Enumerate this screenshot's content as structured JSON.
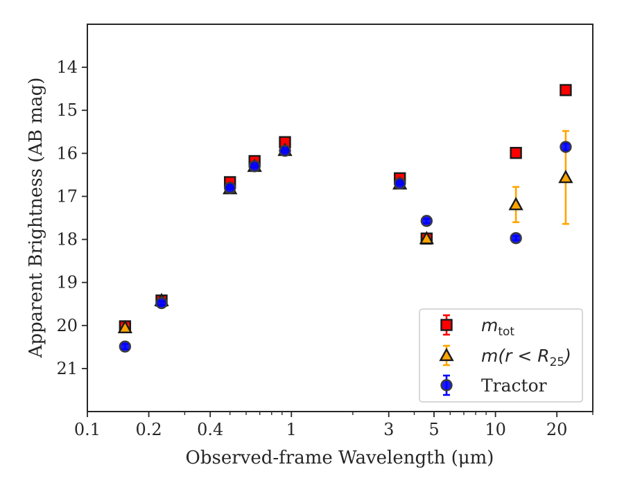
{
  "chart_data": {
    "type": "scatter",
    "xlabel": "Observed-frame Wavelength (μm)",
    "ylabel": "Apparent Brightness (AB mag)",
    "x_scale": "log",
    "y_inverted": true,
    "xlim": [
      0.1,
      30
    ],
    "ylim": [
      22,
      13
    ],
    "x_ticks": [
      {
        "value": 0.1,
        "label": "0.1"
      },
      {
        "value": 0.2,
        "label": "0.2"
      },
      {
        "value": 0.4,
        "label": "0.4"
      },
      {
        "value": 1,
        "label": "1"
      },
      {
        "value": 3,
        "label": "3"
      },
      {
        "value": 5,
        "label": "5"
      },
      {
        "value": 10,
        "label": "10"
      },
      {
        "value": 20,
        "label": "20"
      }
    ],
    "y_ticks": [
      {
        "value": 14,
        "label": "14"
      },
      {
        "value": 15,
        "label": "15"
      },
      {
        "value": 16,
        "label": "16"
      },
      {
        "value": 17,
        "label": "17"
      },
      {
        "value": 18,
        "label": "18"
      },
      {
        "value": 19,
        "label": "19"
      },
      {
        "value": 20,
        "label": "20"
      },
      {
        "value": 21,
        "label": "21"
      }
    ],
    "legend_position": "bottom-right",
    "series": [
      {
        "name": "m_tot",
        "legend_text": {
          "base": "m",
          "sub": "tot"
        },
        "marker": "square",
        "color": "#ff0000",
        "edge_color": "#1a1a1a",
        "errorbar_color": "#ff0000",
        "points": [
          {
            "x": 0.153,
            "y": 20.02,
            "err": 0.05
          },
          {
            "x": 0.231,
            "y": 19.42,
            "err": 0.04
          },
          {
            "x": 0.5,
            "y": 16.67,
            "err": 0.03
          },
          {
            "x": 0.66,
            "y": 16.18,
            "err": 0.03
          },
          {
            "x": 0.93,
            "y": 15.74,
            "err": 0.03
          },
          {
            "x": 3.4,
            "y": 16.58,
            "err": 0.03
          },
          {
            "x": 4.6,
            "y": 17.98,
            "err": 0.03
          },
          {
            "x": 12.6,
            "y": 15.99,
            "err": 0.03
          },
          {
            "x": 22.1,
            "y": 14.53,
            "err": 0.03
          }
        ]
      },
      {
        "name": "m(r<R25)",
        "legend_text": {
          "base": "m(r < R",
          "sub": "25",
          "tail": ")"
        },
        "marker": "triangle",
        "color": "#ffa500",
        "edge_color": "#1a1a1a",
        "errorbar_color": "#ffa500",
        "points": [
          {
            "x": 0.153,
            "y": 20.05,
            "err": 0.05
          },
          {
            "x": 0.231,
            "y": 19.42,
            "err": 0.04
          },
          {
            "x": 0.5,
            "y": 16.82,
            "err": 0.03
          },
          {
            "x": 0.66,
            "y": 16.3,
            "err": 0.03
          },
          {
            "x": 0.93,
            "y": 15.93,
            "err": 0.03
          },
          {
            "x": 3.4,
            "y": 16.71,
            "err": 0.03
          },
          {
            "x": 4.6,
            "y": 17.98,
            "err": 0.03
          },
          {
            "x": 12.6,
            "y": 17.19,
            "err": 0.41
          },
          {
            "x": 22.1,
            "y": 16.56,
            "err": 1.08
          }
        ]
      },
      {
        "name": "Tractor",
        "legend_text": {
          "base": "Tractor"
        },
        "marker": "circle",
        "color": "#0000ff",
        "edge_color": "#3a3a3a",
        "errorbar_color": "#0000ff",
        "points": [
          {
            "x": 0.153,
            "y": 20.49,
            "err": 0.06
          },
          {
            "x": 0.231,
            "y": 19.48,
            "err": 0.04
          },
          {
            "x": 0.5,
            "y": 16.8,
            "err": 0.03
          },
          {
            "x": 0.66,
            "y": 16.3,
            "err": 0.03
          },
          {
            "x": 0.93,
            "y": 15.94,
            "err": 0.03
          },
          {
            "x": 3.4,
            "y": 16.7,
            "err": 0.03
          },
          {
            "x": 4.6,
            "y": 17.57,
            "err": 0.05
          },
          {
            "x": 12.6,
            "y": 17.97,
            "err": 0.05
          },
          {
            "x": 22.1,
            "y": 15.85,
            "err": 0.08
          }
        ]
      }
    ]
  }
}
